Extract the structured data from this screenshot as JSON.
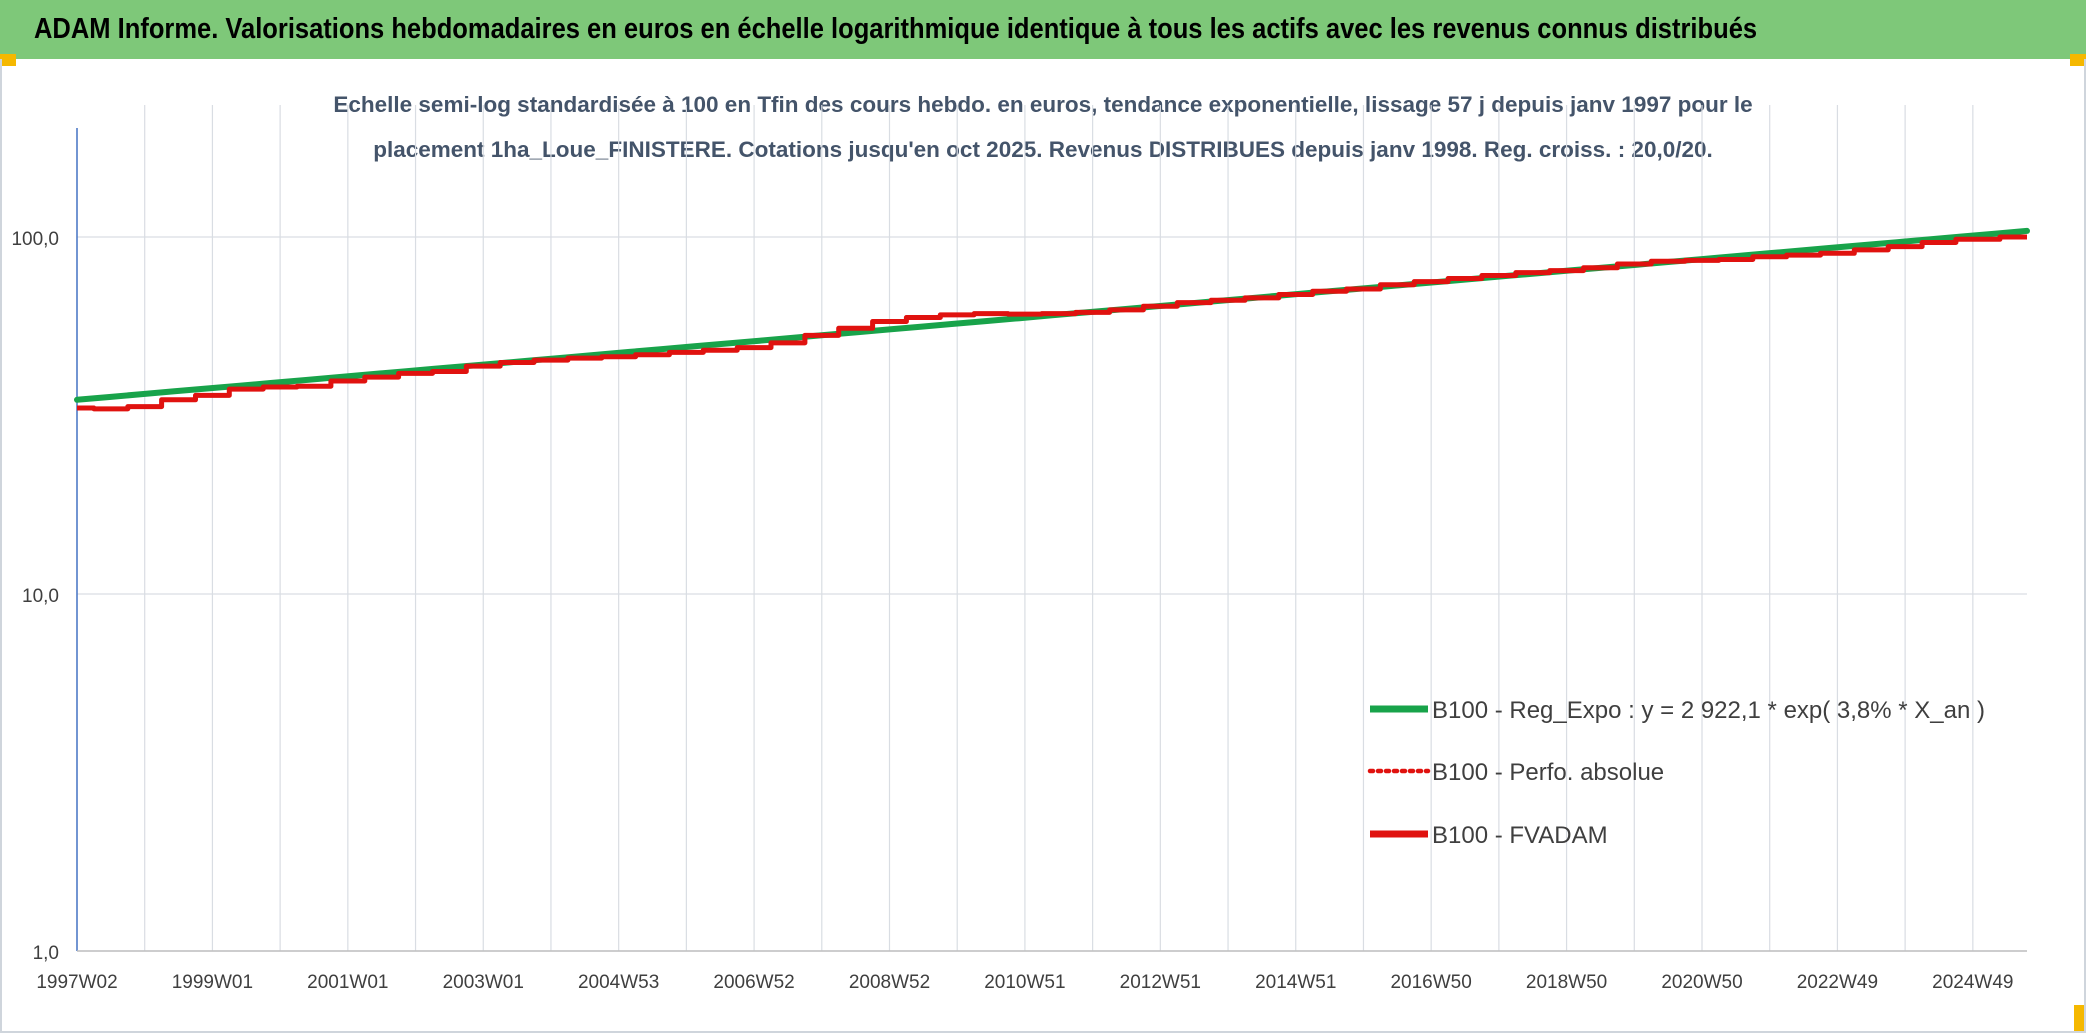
{
  "header": {
    "title": "ADAM Informe. Valorisations hebdomadaires en euros en échelle logarithmique identique à tous les actifs avec les revenus connus distribués"
  },
  "colors": {
    "header_bg": "#7ec879",
    "accent_corner": "#f5b800",
    "regression": "#18a34a",
    "perf_absolue": "#e0120f",
    "fvadam": "#e0120f",
    "grid": "#d9dde3",
    "axis_text": "#3f3f3f",
    "title_text": "#44546a"
  },
  "chart_data": {
    "type": "line",
    "scale": "log",
    "title_line1": "Echelle semi-log standardisée à 100 en Tfin des cours hebdo. en euros, tendance exponentielle, lissage 57 j depuis janv 1997 pour le",
    "title_line2": "placement 1ha_Loue_FINISTERE. Cotations jusqu'en oct 2025. Revenus DISTRIBUES depuis janv 1998. Reg. croiss. : 20,0/20.",
    "ylim": [
      1,
      200
    ],
    "xlim": [
      1997.0,
      2025.8
    ],
    "y_ticks": [
      {
        "value": 1,
        "label": "1,0"
      },
      {
        "value": 10,
        "label": "10,0"
      },
      {
        "value": 100,
        "label": "100,0"
      }
    ],
    "x_ticks": [
      {
        "value": 1997.0,
        "label": "1997W02"
      },
      {
        "value": 1999.0,
        "label": "1999W01"
      },
      {
        "value": 2001.0,
        "label": "2001W01"
      },
      {
        "value": 2003.0,
        "label": "2003W01"
      },
      {
        "value": 2005.0,
        "label": "2004W53"
      },
      {
        "value": 2007.0,
        "label": "2006W52"
      },
      {
        "value": 2009.0,
        "label": "2008W52"
      },
      {
        "value": 2011.0,
        "label": "2010W51"
      },
      {
        "value": 2013.0,
        "label": "2012W51"
      },
      {
        "value": 2015.0,
        "label": "2014W51"
      },
      {
        "value": 2017.0,
        "label": "2016W50"
      },
      {
        "value": 2019.0,
        "label": "2018W50"
      },
      {
        "value": 2021.0,
        "label": "2020W50"
      },
      {
        "value": 2023.0,
        "label": "2022W49"
      },
      {
        "value": 2025.0,
        "label": "2024W49"
      }
    ],
    "series": [
      {
        "name": "B100 - Reg_Expo : y = 2 922,1 * exp( 3,8% *  X_an )",
        "style": "solid-green",
        "x": [
          1997.0,
          2025.8
        ],
        "values": [
          35.0,
          104.0
        ]
      },
      {
        "name": "B100 - Perfo. absolue",
        "style": "dotted-red",
        "x": [],
        "values": []
      },
      {
        "name": "B100 - FVADAM",
        "style": "solid-red",
        "x": [
          1997.0,
          1997.5,
          1998.0,
          1998.5,
          1999.0,
          1999.5,
          2000.0,
          2000.5,
          2001.0,
          2001.5,
          2002.0,
          2002.5,
          2003.0,
          2003.5,
          2004.0,
          2004.5,
          2005.0,
          2005.5,
          2006.0,
          2006.5,
          2007.0,
          2007.5,
          2008.0,
          2008.5,
          2009.0,
          2009.5,
          2010.0,
          2010.5,
          2011.0,
          2011.5,
          2012.0,
          2012.5,
          2013.0,
          2013.5,
          2014.0,
          2014.5,
          2015.0,
          2015.5,
          2016.0,
          2016.5,
          2017.0,
          2017.5,
          2018.0,
          2018.5,
          2019.0,
          2019.5,
          2020.0,
          2020.5,
          2021.0,
          2021.5,
          2022.0,
          2022.5,
          2023.0,
          2023.5,
          2024.0,
          2024.5,
          2025.0,
          2025.8
        ],
        "values": [
          33.2,
          33.0,
          33.5,
          35.0,
          36.0,
          37.5,
          38.0,
          38.2,
          39.5,
          40.5,
          41.5,
          42.0,
          43.5,
          44.5,
          45.2,
          45.8,
          46.2,
          46.8,
          47.5,
          48.2,
          49.0,
          50.5,
          53.0,
          55.5,
          58.0,
          59.5,
          60.5,
          61.0,
          60.8,
          61.0,
          61.5,
          62.5,
          64.0,
          65.5,
          66.5,
          67.5,
          69.0,
          70.5,
          71.5,
          73.5,
          75.0,
          76.5,
          78.0,
          79.5,
          80.5,
          82.0,
          84.0,
          85.5,
          86.0,
          86.5,
          88.0,
          89.0,
          90.0,
          92.0,
          94.0,
          96.5,
          98.5,
          100.0
        ]
      }
    ],
    "legend_position": "bottom-right"
  }
}
